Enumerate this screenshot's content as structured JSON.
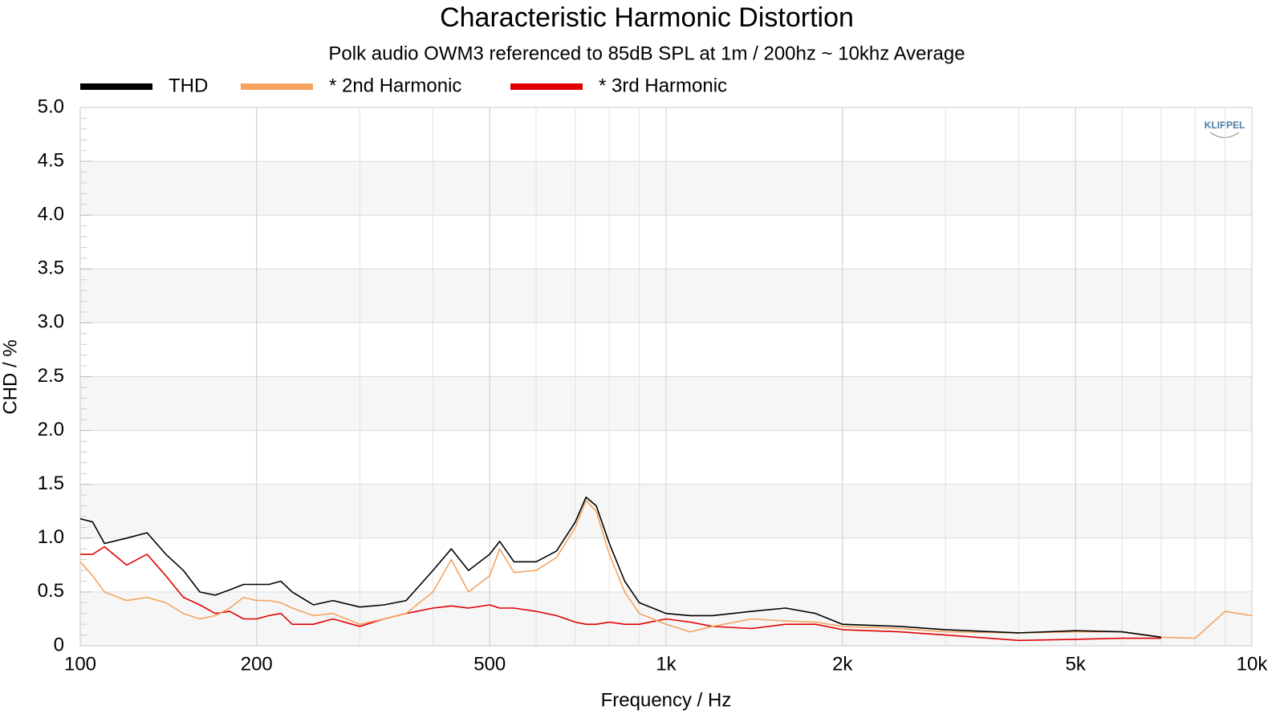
{
  "chart_data": {
    "type": "line",
    "title": "Characteristic Harmonic Distortion",
    "subtitle": "Polk audio OWM3 referenced to 85dB SPL at 1m / 200hz ~ 10khz Average",
    "xlabel": "Frequency / Hz",
    "ylabel": "CHD / %",
    "annotation": "KLIPPEL",
    "xscale": "log",
    "grid": true,
    "legend": "top-left",
    "xlim": [
      100,
      10000
    ],
    "ylim": [
      0,
      5
    ],
    "xticks": [
      100,
      200,
      500,
      {
        "value": 1000,
        "label": "1k"
      },
      {
        "value": 2000,
        "label": "2k"
      },
      {
        "value": 5000,
        "label": "5k"
      },
      {
        "value": 10000,
        "label": "10k"
      }
    ],
    "yticks": [
      0,
      0.5,
      {
        "value": 1,
        "label": "1.0"
      },
      1.5,
      {
        "value": 2,
        "label": "2.0"
      },
      2.5,
      {
        "value": 3,
        "label": "3.0"
      },
      3.5,
      {
        "value": 4,
        "label": "4.0"
      },
      4.5,
      {
        "value": 5,
        "label": "5.0"
      }
    ],
    "x": [
      100,
      105,
      110,
      120,
      130,
      140,
      150,
      160,
      170,
      180,
      190,
      200,
      210,
      220,
      230,
      250,
      270,
      300,
      330,
      360,
      400,
      430,
      460,
      500,
      520,
      550,
      600,
      650,
      700,
      730,
      760,
      800,
      850,
      900,
      1000,
      1100,
      1200,
      1400,
      1600,
      1800,
      2000,
      2500,
      3000,
      4000,
      5000,
      6000,
      7000,
      8000,
      9000,
      10000
    ],
    "series": [
      {
        "name": "THD",
        "color": "#000000",
        "values": [
          1.18,
          1.15,
          0.95,
          1.0,
          1.05,
          0.85,
          0.7,
          0.5,
          0.47,
          0.52,
          0.57,
          0.57,
          0.57,
          0.6,
          0.5,
          0.38,
          0.42,
          0.36,
          0.38,
          0.42,
          0.7,
          0.9,
          0.7,
          0.85,
          0.97,
          0.78,
          0.78,
          0.88,
          1.15,
          1.38,
          1.3,
          0.95,
          0.6,
          0.4,
          0.3,
          0.28,
          0.28,
          0.32,
          0.35,
          0.3,
          0.2,
          0.18,
          0.15,
          0.12,
          0.14,
          0.13,
          0.08,
          null,
          null,
          null
        ]
      },
      {
        "name": "* 2nd Harmonic",
        "color": "#f4a460",
        "values": [
          0.78,
          0.65,
          0.5,
          0.42,
          0.45,
          0.4,
          0.3,
          0.25,
          0.28,
          0.35,
          0.45,
          0.42,
          0.42,
          0.4,
          0.35,
          0.28,
          0.3,
          0.2,
          0.25,
          0.3,
          0.5,
          0.8,
          0.5,
          0.65,
          0.9,
          0.68,
          0.7,
          0.82,
          1.1,
          1.35,
          1.25,
          0.85,
          0.5,
          0.3,
          0.2,
          0.13,
          0.18,
          0.25,
          0.23,
          0.22,
          0.18,
          0.16,
          0.13,
          0.12,
          0.13,
          0.13,
          0.08,
          0.07,
          0.32,
          0.28
        ]
      },
      {
        "name": "* 3rd Harmonic",
        "color": "#e00000",
        "values": [
          0.85,
          0.85,
          0.92,
          0.75,
          0.85,
          0.65,
          0.45,
          0.38,
          0.3,
          0.32,
          0.25,
          0.25,
          0.28,
          0.3,
          0.2,
          0.2,
          0.25,
          0.18,
          0.25,
          0.3,
          0.35,
          0.37,
          0.35,
          0.38,
          0.35,
          0.35,
          0.32,
          0.28,
          0.22,
          0.2,
          0.2,
          0.22,
          0.2,
          0.2,
          0.25,
          0.22,
          0.18,
          0.16,
          0.2,
          0.2,
          0.15,
          0.13,
          0.1,
          0.05,
          0.06,
          0.07,
          0.07,
          null,
          null,
          null
        ]
      }
    ]
  }
}
